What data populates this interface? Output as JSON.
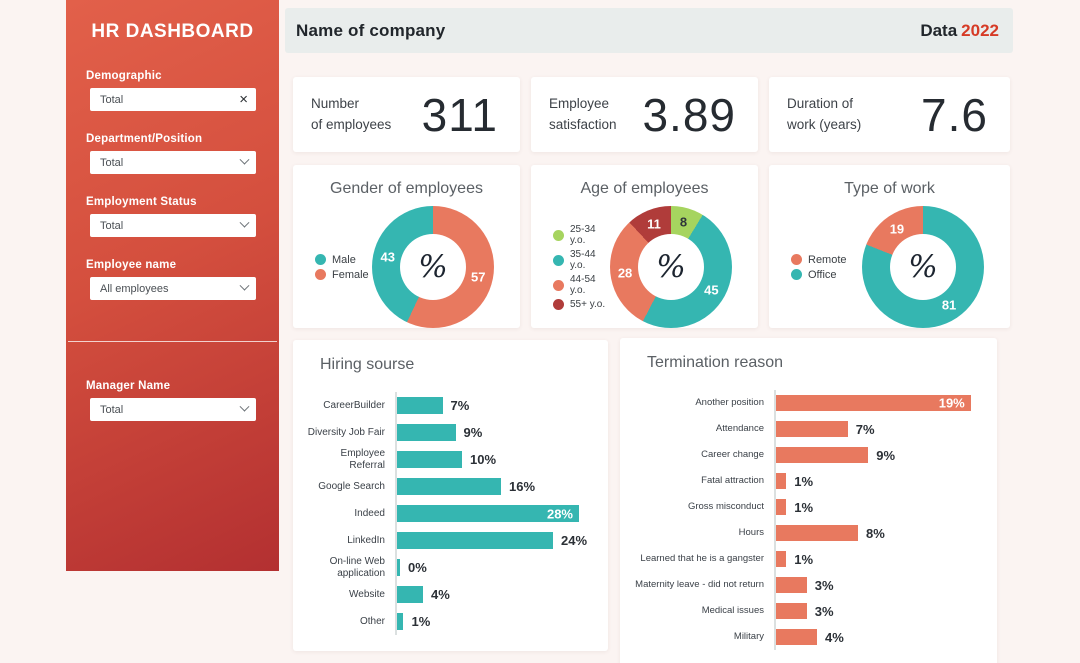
{
  "colors": {
    "teal": "#35b6b1",
    "salmon": "#e8795f",
    "green": "#a6d45f",
    "dark_red": "#b03c3a",
    "sidebar_top": "#e2604a",
    "sidebar_bottom": "#b33031",
    "header_bg": "#e9edec",
    "year_red": "#d63b26",
    "page_bg": "#fbf4f2"
  },
  "sidebar": {
    "title": "HR DASHBOARD",
    "filters": [
      {
        "label": "Demographic",
        "value": "Total",
        "icon": "clear"
      },
      {
        "label": "Department/Position",
        "value": "Total",
        "icon": "chevron"
      },
      {
        "label": "Employment Status",
        "value": "Total",
        "icon": "chevron"
      },
      {
        "label": "Employee name",
        "value": "All employees",
        "icon": "chevron"
      }
    ],
    "manager": {
      "label": "Manager Name",
      "value": "Total",
      "icon": "chevron"
    }
  },
  "header": {
    "title": "Name of company",
    "data_label": "Data",
    "year": "2022"
  },
  "kpis": [
    {
      "label_line1": "Number",
      "label_line2": "of employees",
      "value": "311"
    },
    {
      "label_line1": "Employee",
      "label_line2": "satisfaction",
      "value": "3.89"
    },
    {
      "label_line1": "Duration of",
      "label_line2": "work (years)",
      "value": "7.6"
    }
  ],
  "chart_data": [
    {
      "type": "pie",
      "title": "Gender of employees",
      "center_symbol": "%",
      "slices": [
        {
          "label": "Female",
          "value": 57,
          "color": "#e8795f",
          "label_color": "#ffffff"
        },
        {
          "label": "Male",
          "value": 43,
          "color": "#35b6b1",
          "label_color": "#ffffff"
        }
      ],
      "legend": [
        {
          "label": "Male",
          "color": "#35b6b1"
        },
        {
          "label": "Female",
          "color": "#e8795f"
        }
      ],
      "legend_position": "left"
    },
    {
      "type": "pie",
      "title": "Age of employees",
      "center_symbol": "%",
      "slices": [
        {
          "label": "25-34 y.o.",
          "value": 8,
          "color": "#a6d45f",
          "label_color": "#2f353a"
        },
        {
          "label": "35-44 y.o.",
          "value": 45,
          "color": "#35b6b1",
          "label_color": "#ffffff"
        },
        {
          "label": "44-54 y.o.",
          "value": 28,
          "color": "#e8795f",
          "label_color": "#ffffff"
        },
        {
          "label": "55+ y.o.",
          "value": 11,
          "color": "#b03c3a",
          "label_color": "#ffffff"
        }
      ],
      "legend": [
        {
          "label": "25-34 y.o.",
          "color": "#a6d45f"
        },
        {
          "label": "35-44 y.o.",
          "color": "#35b6b1"
        },
        {
          "label": "44-54 y.o.",
          "color": "#e8795f"
        },
        {
          "label": "55+ y.o.",
          "color": "#b03c3a"
        }
      ],
      "legend_position": "left"
    },
    {
      "type": "pie",
      "title": "Type of work",
      "center_symbol": "%",
      "slices": [
        {
          "label": "Office",
          "value": 81,
          "color": "#35b6b1",
          "label_color": "#ffffff"
        },
        {
          "label": "Remote",
          "value": 19,
          "color": "#e8795f",
          "label_color": "#ffffff"
        }
      ],
      "legend": [
        {
          "label": "Remote",
          "color": "#e8795f"
        },
        {
          "label": "Office",
          "color": "#35b6b1"
        }
      ],
      "legend_position": "left"
    },
    {
      "type": "bar",
      "title": "Hiring sourse",
      "orientation": "horizontal",
      "color": "#35b6b1",
      "axis_max": 30,
      "value_suffix": "%",
      "categories": [
        "CareerBuilder",
        "Diversity Job Fair",
        "Employee Referral",
        "Google Search",
        "Indeed",
        "LinkedIn",
        "On-line Web application",
        "Website",
        "Other"
      ],
      "values": [
        7,
        9,
        10,
        16,
        28,
        24,
        0,
        4,
        1
      ]
    },
    {
      "type": "bar",
      "title": "Termination reason",
      "orientation": "horizontal",
      "color": "#e8795f",
      "axis_max": 20,
      "value_suffix": "%",
      "categories": [
        "Another position",
        "Attendance",
        "Career change",
        "Fatal attraction",
        "Gross misconduct",
        "Hours",
        "Learned that he is a gangster",
        "Maternity leave - did not return",
        "Medical issues",
        "Military"
      ],
      "values": [
        19,
        7,
        9,
        1,
        1,
        8,
        1,
        3,
        3,
        4
      ]
    }
  ]
}
